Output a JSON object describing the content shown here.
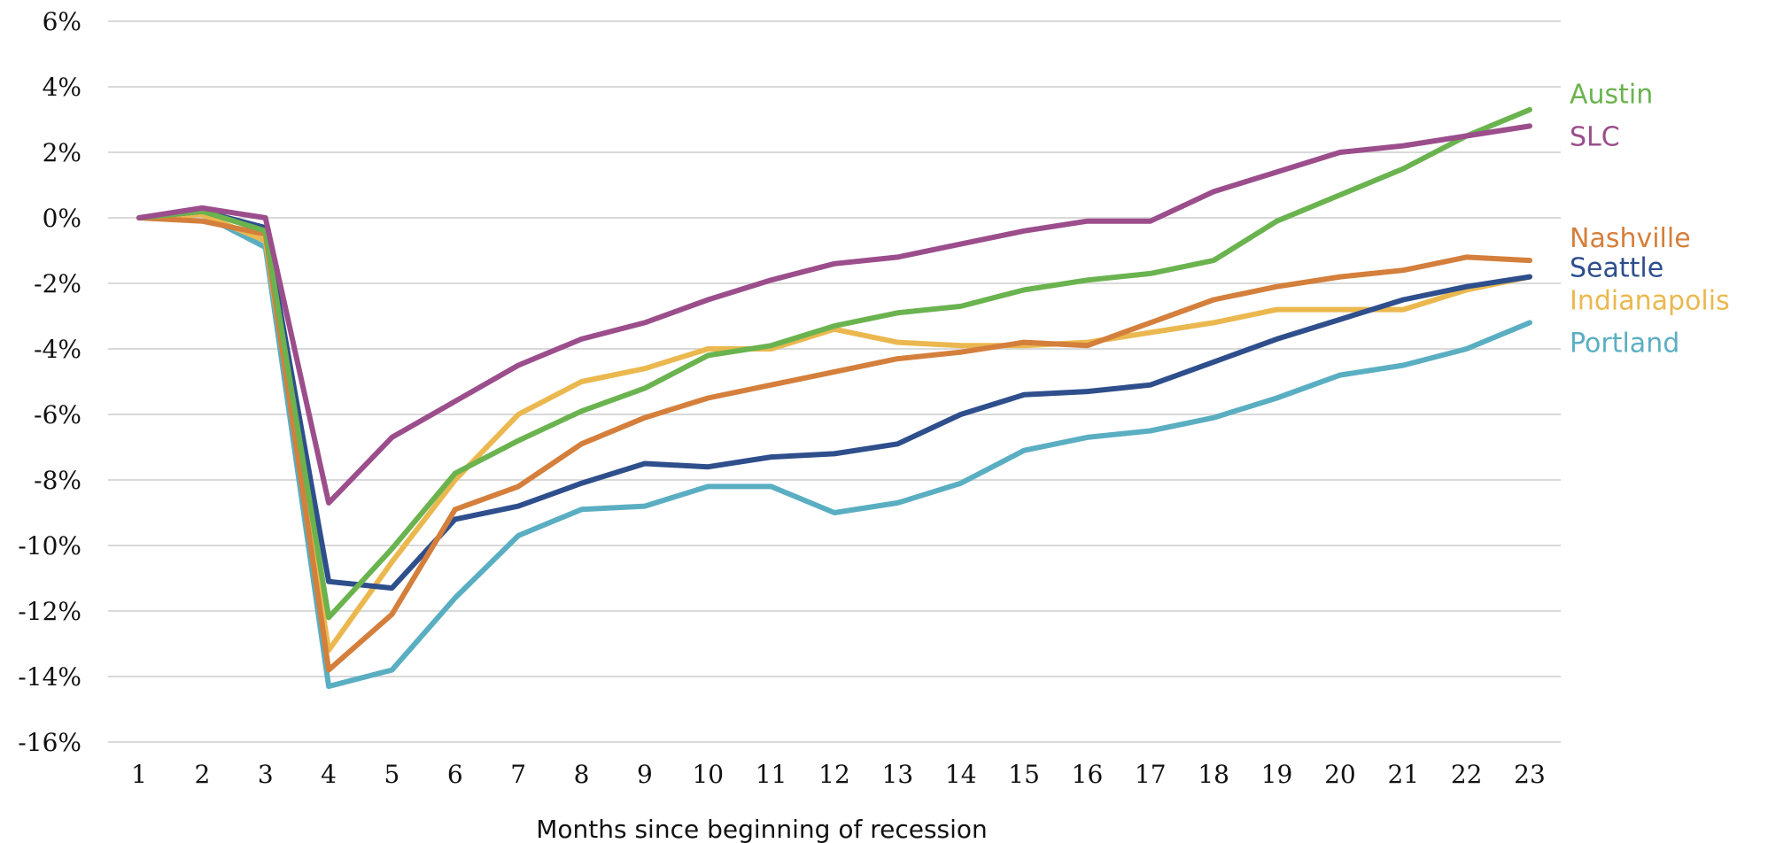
{
  "chart_data": {
    "type": "line",
    "title": "",
    "xlabel": "Months since beginning of recession",
    "ylabel": "",
    "x": [
      1,
      2,
      3,
      4,
      5,
      6,
      7,
      8,
      9,
      10,
      11,
      12,
      13,
      14,
      15,
      16,
      17,
      18,
      19,
      20,
      21,
      22,
      23
    ],
    "ylim": [
      -16,
      6
    ],
    "ytick_values": [
      6,
      4,
      2,
      0,
      -2,
      -4,
      -6,
      -8,
      -10,
      -12,
      -14,
      -16
    ],
    "ytick_labels": [
      "6%",
      "4%",
      "2%",
      "0%",
      "-2%",
      "-4%",
      "-6%",
      "-8%",
      "-10%",
      "-12%",
      "-14%",
      "-16%"
    ],
    "xtick_labels": [
      "1",
      "2",
      "3",
      "4",
      "5",
      "6",
      "7",
      "8",
      "9",
      "10",
      "11",
      "12",
      "13",
      "14",
      "15",
      "16",
      "17",
      "18",
      "19",
      "20",
      "21",
      "22",
      "23"
    ],
    "grid": "horizontal",
    "legend": "direct labels at right end of lines",
    "series": [
      {
        "name": "Portland",
        "color": "#5aaec2",
        "values": [
          0,
          0.1,
          -0.9,
          -14.3,
          -13.8,
          -11.6,
          -9.7,
          -8.9,
          -8.8,
          -8.2,
          -8.2,
          -9.0,
          -8.7,
          -8.1,
          -7.1,
          -6.7,
          -6.5,
          -6.1,
          -5.5,
          -4.8,
          -4.5,
          -4.0,
          -3.2
        ]
      },
      {
        "name": "Indianapolis",
        "color": "#ebb84f",
        "values": [
          0,
          0.1,
          -0.7,
          -13.2,
          -10.5,
          -8.0,
          -6.0,
          -5.0,
          -4.6,
          -4.0,
          -4.0,
          -3.4,
          -3.8,
          -3.9,
          -3.9,
          -3.8,
          -3.5,
          -3.2,
          -2.8,
          -2.8,
          -2.8,
          -2.2,
          -1.8
        ]
      },
      {
        "name": "Seattle",
        "color": "#2e4e8c",
        "values": [
          0,
          0.2,
          -0.3,
          -11.1,
          -11.3,
          -9.2,
          -8.8,
          -8.1,
          -7.5,
          -7.6,
          -7.3,
          -7.2,
          -6.9,
          -6.0,
          -5.4,
          -5.3,
          -5.1,
          -4.4,
          -3.7,
          -3.1,
          -2.5,
          -2.1,
          -1.8
        ]
      },
      {
        "name": "Nashville",
        "color": "#d47f3c",
        "values": [
          0,
          -0.1,
          -0.5,
          -13.8,
          -12.1,
          -8.9,
          -8.2,
          -6.9,
          -6.1,
          -5.5,
          -5.1,
          -4.7,
          -4.3,
          -4.1,
          -3.8,
          -3.9,
          -3.2,
          -2.5,
          -2.1,
          -1.8,
          -1.6,
          -1.2,
          -1.3
        ]
      },
      {
        "name": "Austin",
        "color": "#6ab34f",
        "values": [
          0,
          0.2,
          -0.4,
          -12.2,
          -10.1,
          -7.8,
          -6.8,
          -5.9,
          -5.2,
          -4.2,
          -3.9,
          -3.3,
          -2.9,
          -2.7,
          -2.2,
          -1.9,
          -1.7,
          -1.3,
          -0.1,
          0.7,
          1.5,
          2.5,
          3.3
        ]
      },
      {
        "name": "SLC",
        "color": "#9b4e8b",
        "values": [
          0,
          0.3,
          0.0,
          -8.7,
          -6.7,
          -5.6,
          -4.5,
          -3.7,
          -3.2,
          -2.5,
          -1.9,
          -1.4,
          -1.2,
          -0.8,
          -0.4,
          -0.1,
          -0.1,
          0.8,
          1.4,
          2.0,
          2.2,
          2.5,
          2.8
        ]
      }
    ],
    "labels": [
      {
        "text": "Austin",
        "color": "#6ab34f",
        "at": 3.8
      },
      {
        "text": "SLC",
        "color": "#9b4e8b",
        "at": 2.5
      },
      {
        "text": "Nashville",
        "color": "#d47f3c",
        "at": -0.6
      },
      {
        "text": "Seattle",
        "color": "#2e4e8c",
        "at": -1.5
      },
      {
        "text": "Indianapolis",
        "color": "#ebb84f",
        "at": -2.5
      },
      {
        "text": "Portland",
        "color": "#5aaec2",
        "at": -3.8
      }
    ]
  }
}
